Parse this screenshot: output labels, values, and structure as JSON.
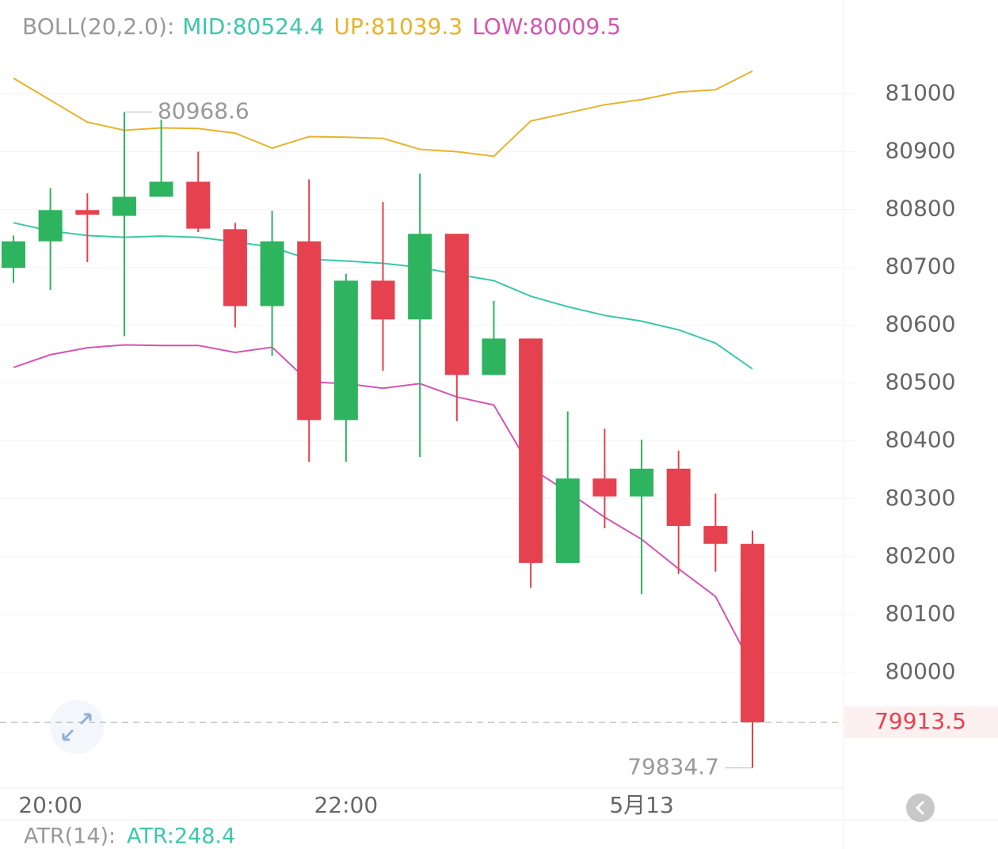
{
  "chart_data": {
    "type": "candlestick",
    "indicator": "BOLL(20,2.0):",
    "categories": [
      null,
      "20:00",
      null,
      null,
      null,
      null,
      null,
      null,
      null,
      "22:00",
      null,
      null,
      null,
      null,
      null,
      null,
      null,
      "5月13",
      null,
      null,
      null
    ],
    "open": [
      80699,
      80745,
      80799,
      80789,
      80822,
      80848,
      80766,
      80633,
      80745,
      80436,
      80677,
      80610,
      80758,
      80514,
      80577,
      80189,
      80335,
      80304,
      80352,
      80253,
      80222
    ],
    "high": [
      80755,
      80837,
      80828,
      80968.6,
      80955,
      80900,
      80777,
      80798,
      80852,
      80689,
      80813,
      80862,
      80758,
      80642,
      80577,
      80451,
      80421,
      80402,
      80383,
      80309,
      80245
    ],
    "low": [
      80673,
      80661,
      80709,
      80581,
      80822,
      80761,
      80596,
      80547,
      80364,
      80364,
      80521,
      80372,
      80434,
      80514,
      80146,
      80189,
      80249,
      80135,
      80170,
      80174,
      79834.7
    ],
    "close": [
      80745,
      80799,
      80791,
      80822,
      80848,
      80767,
      80633,
      80745,
      80436,
      80677,
      80610,
      80758,
      80514,
      80577,
      80189,
      80335,
      80304,
      80352,
      80253,
      80222,
      79913.5
    ],
    "up_color": "#2eb35f",
    "down_color": "#e5414f",
    "series": [
      {
        "label": "MID:80524.4",
        "color": "#3cc7aa",
        "values": [
          80777,
          80763,
          80755,
          80752,
          80754,
          80752,
          80744,
          80735,
          80714,
          80711,
          80707,
          80700,
          80688,
          80677,
          80650,
          80632,
          80617,
          80607,
          80592,
          80569,
          80524.4
        ]
      },
      {
        "label": "UP:81039.3",
        "color": "#e6b32a",
        "values": [
          81027,
          80989,
          80951,
          80937,
          80941,
          80940,
          80932,
          80906,
          80926,
          80925,
          80923,
          80904,
          80900,
          80892,
          80953,
          80967,
          80981,
          80990,
          81003,
          81007,
          81039.3
        ]
      },
      {
        "label": "LOW:80009.5",
        "color": "#d455b2",
        "values": [
          80527,
          80549,
          80561,
          80566,
          80565,
          80565,
          80553,
          80562,
          80502,
          80499,
          80491,
          80499,
          80476,
          80462,
          80353,
          80312,
          80268,
          80230,
          80179,
          80131,
          80009.5
        ]
      }
    ],
    "ylim": [
      79800,
      81080
    ],
    "yticks": [
      80000,
      80100,
      80200,
      80300,
      80400,
      80500,
      80600,
      80700,
      80800,
      80900,
      81000
    ],
    "grid": true,
    "atr_title": "ATR(14):",
    "atr_label": "ATR:248.4"
  }
}
